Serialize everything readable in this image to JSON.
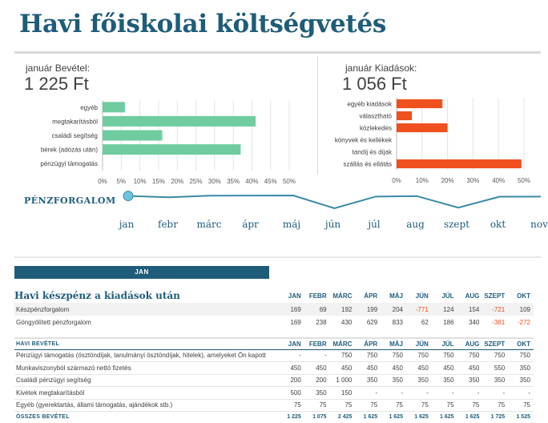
{
  "title": "Havi főiskolai költségvetés",
  "income_panel": {
    "label": "január Bevétel:",
    "total": "1 225 Ft"
  },
  "expense_panel": {
    "label": "január Kiadások:",
    "total": "1 056 Ft"
  },
  "chart_data": [
    {
      "type": "bar",
      "orientation": "horizontal",
      "categories": [
        "egyéb",
        "megtakarításból",
        "családi segítség",
        "bérek (adózás után)",
        "pénzügyi támogatás"
      ],
      "values": [
        6,
        41,
        16,
        37,
        0
      ],
      "xlim": [
        0,
        50
      ],
      "tick_labels": [
        "0%",
        "5%",
        "10%",
        "15%",
        "20%",
        "25%",
        "30%",
        "35%",
        "40%",
        "45%",
        "50%"
      ],
      "grid": true,
      "color": "#70cca0"
    },
    {
      "type": "bar",
      "orientation": "horizontal",
      "categories": [
        "egyéb kiadások",
        "választható",
        "közlekedés",
        "könyvek és kellékek",
        "tandíj és díjak",
        "szállás és ellátás"
      ],
      "values": [
        18,
        6,
        20,
        0,
        0,
        49
      ],
      "xlim": [
        0,
        50
      ],
      "tick_labels": [
        "0%",
        "10%",
        "20%",
        "30%",
        "40%",
        "50%"
      ],
      "grid": true,
      "color": "#f0501e"
    },
    {
      "type": "line",
      "title": "PÉNZFORGALOM",
      "categories": [
        "jan",
        "febr",
        "márc",
        "ápr",
        "máj",
        "jún",
        "júl",
        "aug",
        "szept",
        "okt",
        "nov"
      ],
      "values": [
        169,
        69,
        192,
        199,
        204,
        -771,
        124,
        154,
        -721,
        109,
        120
      ],
      "selected_index": 0,
      "color": "#3a8aa6"
    }
  ],
  "month_tab": "JAN",
  "cash_table": {
    "title": "Havi készpénz a kiadások után",
    "months": [
      "JAN",
      "FEBR",
      "MÁRC",
      "ÁPR",
      "MÁJ",
      "JÚN",
      "JÚL",
      "AUG",
      "SZEPT",
      "OKT"
    ],
    "rows": [
      {
        "label": "Készpénzforgalom",
        "values": [
          "169",
          "69",
          "192",
          "199",
          "204",
          "-771",
          "124",
          "154",
          "-721",
          "109"
        ]
      },
      {
        "label": "Göngyölített pénzforgalom",
        "values": [
          "169",
          "238",
          "430",
          "629",
          "833",
          "62",
          "186",
          "340",
          "-381",
          "-272"
        ]
      }
    ]
  },
  "income_table": {
    "title": "HAVI BEVÉTEL",
    "months": [
      "JAN",
      "FEBR",
      "MÁRC",
      "ÁPR",
      "MÁJ",
      "JÚN",
      "JÚL",
      "AUG",
      "SZEPT",
      "OKT"
    ],
    "rows": [
      {
        "label": "Pénzügyi támogatás (ösztöndíjak, tanulmányi ösztöndíjak, hitelek), amelyeket Ön kapott",
        "values": [
          "-",
          "-",
          "750",
          "750",
          "750",
          "750",
          "750",
          "750",
          "750",
          "750"
        ]
      },
      {
        "label": "Munkaviszonyból származó nettó fizetés",
        "values": [
          "450",
          "450",
          "450",
          "450",
          "450",
          "450",
          "450",
          "450",
          "550",
          "350"
        ]
      },
      {
        "label": "Családi pénzügyi segítség",
        "values": [
          "200",
          "200",
          "1 000",
          "350",
          "350",
          "350",
          "350",
          "350",
          "350",
          "350"
        ]
      },
      {
        "label": "Kivétek megtakarításból",
        "values": [
          "500",
          "350",
          "150",
          "-",
          "-",
          "-",
          "-",
          "-",
          "-",
          "-"
        ]
      },
      {
        "label": "Egyéb (gyerektartás, állami támogatás, ajándékok stb.)",
        "values": [
          "75",
          "75",
          "75",
          "75",
          "75",
          "75",
          "75",
          "75",
          "75",
          "75"
        ]
      }
    ],
    "total_label": "ÖSSZES BEVÉTEL",
    "totals": [
      "1 225",
      "1 075",
      "2 425",
      "1 625",
      "1 625",
      "1 625",
      "1 625",
      "1 625",
      "1 725",
      "1 525"
    ]
  }
}
